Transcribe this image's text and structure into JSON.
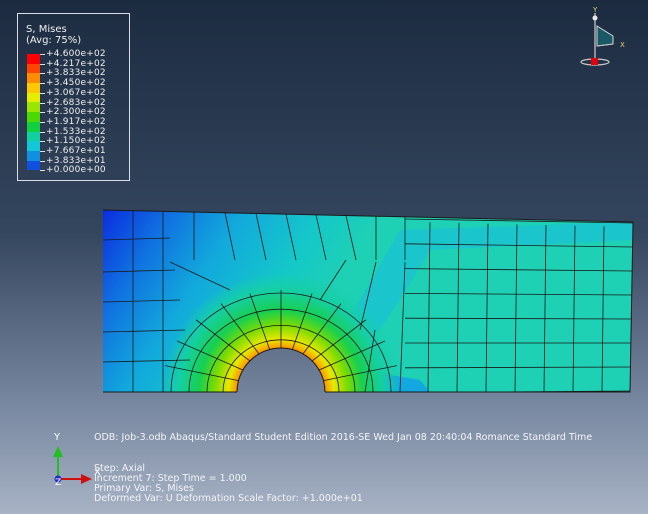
{
  "legend": {
    "title_line1": "S, Mises",
    "title_line2": "(Avg: 75%)",
    "entries": [
      {
        "value": "+4.600e+02",
        "color": "#ff0000"
      },
      {
        "value": "+4.217e+02",
        "color": "#ff4500"
      },
      {
        "value": "+3.833e+02",
        "color": "#ff8c00"
      },
      {
        "value": "+3.450e+02",
        "color": "#ffc800"
      },
      {
        "value": "+3.067e+02",
        "color": "#e6ee00"
      },
      {
        "value": "+2.683e+02",
        "color": "#9be600"
      },
      {
        "value": "+2.300e+02",
        "color": "#4cd900"
      },
      {
        "value": "+1.917e+02",
        "color": "#10d040"
      },
      {
        "value": "+1.533e+02",
        "color": "#10d0a0"
      },
      {
        "value": "+1.150e+02",
        "color": "#10c8d8"
      },
      {
        "value": "+7.667e+01",
        "color": "#1090e0"
      },
      {
        "value": "+3.833e+01",
        "color": "#1050e0"
      },
      {
        "value": "+0.000e+00",
        "color": "#1010d0"
      }
    ]
  },
  "triad": {
    "x": "X",
    "y": "Y",
    "z": "Z"
  },
  "status": {
    "odb_line": "ODB: Job-3.odb    Abaqus/Standard Student Edition 2016-SE    Wed Jan 08 20:40:04 Romance Standard Time",
    "step": "Step: Axial",
    "increment": "Increment      7: Step Time =    1.000",
    "primary_var": "Primary Var: S, Mises",
    "deformed_var": "Deformed Var: U   Deformation Scale Factor: +1.000e+01"
  },
  "colors": {
    "mesh_line": "#1a1a1a",
    "base_fill": "#20cfb0"
  }
}
